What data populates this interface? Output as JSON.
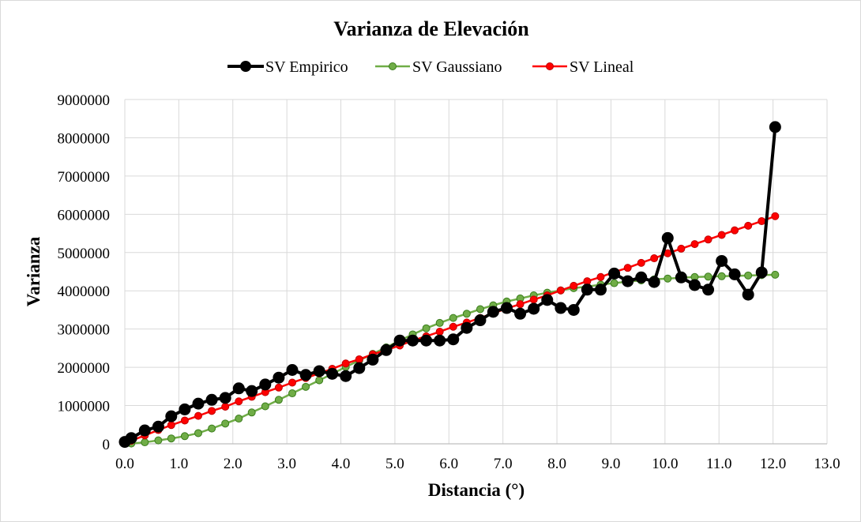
{
  "chart_data": {
    "type": "line",
    "title": "Varianza  de Elevación",
    "xlabel": "Distancia (°)",
    "ylabel": "Varianza",
    "xlim": [
      0,
      13
    ],
    "ylim": [
      0,
      9000000
    ],
    "x_ticks": [
      "0.0",
      "1.0",
      "2.0",
      "3.0",
      "4.0",
      "5.0",
      "6.0",
      "7.0",
      "8.0",
      "9.0",
      "10.0",
      "11.0",
      "12.0",
      "13.0"
    ],
    "y_ticks": [
      "0",
      "1000000",
      "2000000",
      "3000000",
      "4000000",
      "5000000",
      "6000000",
      "7000000",
      "8000000",
      "9000000"
    ],
    "grid": true,
    "legend_position": "top",
    "colors": {
      "empirico": "#000000",
      "gaussiano": "#70ad47",
      "gaussiano_edge": "#3a7d1c",
      "lineal": "#ff0000",
      "grid": "#d9d9d9"
    },
    "series": [
      {
        "name": "SV Empirico",
        "color": "#000000",
        "x": [
          0.0,
          0.12,
          0.37,
          0.62,
          0.86,
          1.11,
          1.36,
          1.61,
          1.86,
          2.11,
          2.35,
          2.6,
          2.85,
          3.1,
          3.35,
          3.6,
          3.84,
          4.09,
          4.34,
          4.59,
          4.84,
          5.09,
          5.33,
          5.58,
          5.83,
          6.08,
          6.33,
          6.58,
          6.82,
          7.07,
          7.32,
          7.57,
          7.82,
          8.07,
          8.31,
          8.56,
          8.81,
          9.06,
          9.31,
          9.56,
          9.8,
          10.05,
          10.3,
          10.55,
          10.8,
          11.05,
          11.29,
          11.54,
          11.79,
          12.04
        ],
        "y": [
          50000,
          150000,
          350000,
          450000,
          720000,
          900000,
          1050000,
          1150000,
          1200000,
          1450000,
          1380000,
          1550000,
          1730000,
          1930000,
          1800000,
          1900000,
          1830000,
          1770000,
          1980000,
          2200000,
          2450000,
          2700000,
          2700000,
          2700000,
          2700000,
          2730000,
          3030000,
          3230000,
          3450000,
          3550000,
          3400000,
          3530000,
          3760000,
          3550000,
          3500000,
          4030000,
          4030000,
          4450000,
          4250000,
          4350000,
          4230000,
          5380000,
          4350000,
          4150000,
          4030000,
          4780000,
          4430000,
          3900000,
          4480000,
          8280000
        ]
      },
      {
        "name": "SV Gaussiano",
        "color": "#70ad47",
        "x": [
          0.0,
          0.12,
          0.37,
          0.62,
          0.86,
          1.11,
          1.36,
          1.61,
          1.86,
          2.11,
          2.35,
          2.6,
          2.85,
          3.1,
          3.35,
          3.6,
          3.84,
          4.09,
          4.34,
          4.59,
          4.84,
          5.09,
          5.33,
          5.58,
          5.83,
          6.08,
          6.33,
          6.58,
          6.82,
          7.07,
          7.32,
          7.57,
          7.82,
          8.07,
          8.31,
          8.56,
          8.81,
          9.06,
          9.31,
          9.56,
          9.8,
          10.05,
          10.3,
          10.55,
          10.8,
          11.05,
          11.29,
          11.54,
          11.79,
          12.04
        ],
        "y": [
          0,
          8000,
          40000,
          90000,
          140000,
          200000,
          280000,
          400000,
          530000,
          660000,
          820000,
          980000,
          1150000,
          1320000,
          1490000,
          1660000,
          1830000,
          2010000,
          2180000,
          2350000,
          2520000,
          2700000,
          2860000,
          3020000,
          3160000,
          3290000,
          3400000,
          3520000,
          3620000,
          3720000,
          3800000,
          3880000,
          3950000,
          4010000,
          4070000,
          4110000,
          4160000,
          4200000,
          4240000,
          4270000,
          4300000,
          4320000,
          4340000,
          4360000,
          4370000,
          4380000,
          4390000,
          4400000,
          4410000,
          4420000
        ]
      },
      {
        "name": "SV Lineal",
        "color": "#ff0000",
        "x": [
          0.0,
          0.12,
          0.37,
          0.62,
          0.86,
          1.11,
          1.36,
          1.61,
          1.86,
          2.11,
          2.35,
          2.6,
          2.85,
          3.1,
          3.35,
          3.6,
          3.84,
          4.09,
          4.34,
          4.59,
          4.84,
          5.09,
          5.33,
          5.58,
          5.83,
          6.08,
          6.33,
          6.58,
          6.82,
          7.07,
          7.32,
          7.57,
          7.82,
          8.07,
          8.31,
          8.56,
          8.81,
          9.06,
          9.31,
          9.56,
          9.8,
          10.05,
          10.3,
          10.55,
          10.8,
          11.05,
          11.29,
          11.54,
          11.79,
          12.04
        ],
        "y": [
          20000,
          80000,
          220000,
          360000,
          490000,
          610000,
          730000,
          860000,
          970000,
          1110000,
          1230000,
          1350000,
          1470000,
          1600000,
          1720000,
          1840000,
          1960000,
          2100000,
          2210000,
          2340000,
          2450000,
          2570000,
          2700000,
          2810000,
          2930000,
          3060000,
          3170000,
          3290000,
          3410000,
          3540000,
          3650000,
          3770000,
          3880000,
          4010000,
          4130000,
          4250000,
          4360000,
          4490000,
          4600000,
          4730000,
          4850000,
          4980000,
          5100000,
          5220000,
          5340000,
          5460000,
          5580000,
          5700000,
          5820000,
          5950000
        ]
      }
    ]
  }
}
